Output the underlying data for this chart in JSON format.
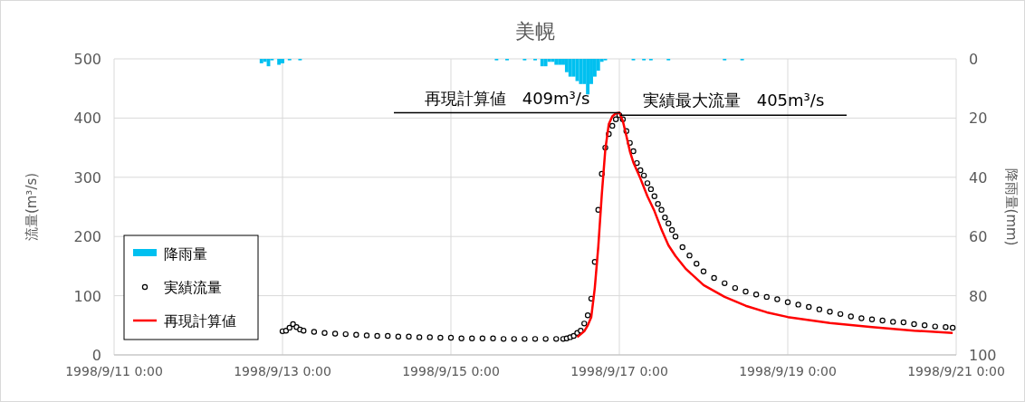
{
  "chart_data": {
    "type": "line",
    "title": "美幌",
    "ylabel": "流量(m³/s)",
    "y2label": "降雨量(mm)",
    "xlim": [
      "1998-09-11T00:00",
      "1998-09-21T00:00"
    ],
    "xticks": [
      {
        "value": "1998-09-11T00:00",
        "label": "1998/9/11 0:00"
      },
      {
        "value": "1998-09-13T00:00",
        "label": "1998/9/13 0:00"
      },
      {
        "value": "1998-09-15T00:00",
        "label": "1998/9/15 0:00"
      },
      {
        "value": "1998-09-17T00:00",
        "label": "1998/9/17 0:00"
      },
      {
        "value": "1998-09-19T00:00",
        "label": "1998/9/19 0:00"
      },
      {
        "value": "1998-09-21T00:00",
        "label": "1998/9/21 0:00"
      }
    ],
    "ylim": [
      0,
      500
    ],
    "yticks": [
      0,
      100,
      200,
      300,
      400,
      500
    ],
    "y2lim": [
      100,
      0
    ],
    "y2ticks": [
      0,
      20,
      40,
      60,
      80,
      100
    ],
    "grid": true,
    "legend": "bottom left",
    "ref_lines": [
      {
        "axis": "y",
        "value": 409,
        "label": "再現計算値　409m³/s",
        "color": "#000000"
      },
      {
        "axis": "y",
        "value": 405,
        "label": "実績最大流量　405m³/s",
        "color": "#000000"
      }
    ],
    "series": [
      {
        "name": "降雨量",
        "type": "bar",
        "axis": "y2",
        "color": "#00c0f0",
        "x": [
          "1998-09-12T18:00",
          "1998-09-12T19:00",
          "1998-09-12T20:00",
          "1998-09-12T21:00",
          "1998-09-12T23:00",
          "1998-09-13T00:00",
          "1998-09-13T02:00",
          "1998-09-13T05:00",
          "1998-09-15T13:00",
          "1998-09-15T16:00",
          "1998-09-15T21:00",
          "1998-09-16T00:00",
          "1998-09-16T02:00",
          "1998-09-16T03:00",
          "1998-09-16T04:00",
          "1998-09-16T05:00",
          "1998-09-16T06:00",
          "1998-09-16T07:00",
          "1998-09-16T08:00",
          "1998-09-16T09:00",
          "1998-09-16T10:00",
          "1998-09-16T11:00",
          "1998-09-16T12:00",
          "1998-09-16T13:00",
          "1998-09-16T14:00",
          "1998-09-16T15:00",
          "1998-09-16T16:00",
          "1998-09-16T17:00",
          "1998-09-16T18:00",
          "1998-09-16T19:00",
          "1998-09-16T20:00",
          "1998-09-17T04:00",
          "1998-09-17T07:00",
          "1998-09-17T09:00",
          "1998-09-17T14:00",
          "1998-09-18T06:00",
          "1998-09-18T11:00"
        ],
        "values": [
          1.5,
          1,
          2.5,
          0.5,
          2,
          1.5,
          0.5,
          0.5,
          0.5,
          0.5,
          0.5,
          0.5,
          2.5,
          2.5,
          1,
          1,
          2,
          2,
          2,
          4.5,
          6,
          6,
          7.5,
          8.5,
          8.5,
          12,
          8.5,
          6,
          4,
          1,
          0.5,
          0.5,
          0.5,
          0.5,
          0.5,
          0.5,
          0.5
        ]
      },
      {
        "name": "実績流量",
        "type": "scatter",
        "marker": "circle",
        "color": "#000000",
        "x": [
          "1998-09-13T00:00",
          "1998-09-13T01:00",
          "1998-09-13T02:00",
          "1998-09-13T03:00",
          "1998-09-13T04:00",
          "1998-09-13T05:00",
          "1998-09-13T06:00",
          "1998-09-13T09:00",
          "1998-09-13T12:00",
          "1998-09-13T15:00",
          "1998-09-13T18:00",
          "1998-09-13T21:00",
          "1998-09-14T00:00",
          "1998-09-14T03:00",
          "1998-09-14T06:00",
          "1998-09-14T09:00",
          "1998-09-14T12:00",
          "1998-09-14T15:00",
          "1998-09-14T18:00",
          "1998-09-14T21:00",
          "1998-09-15T00:00",
          "1998-09-15T03:00",
          "1998-09-15T06:00",
          "1998-09-15T09:00",
          "1998-09-15T12:00",
          "1998-09-15T15:00",
          "1998-09-15T18:00",
          "1998-09-15T21:00",
          "1998-09-16T00:00",
          "1998-09-16T03:00",
          "1998-09-16T06:00",
          "1998-09-16T08:00",
          "1998-09-16T09:00",
          "1998-09-16T10:00",
          "1998-09-16T11:00",
          "1998-09-16T12:00",
          "1998-09-16T13:00",
          "1998-09-16T14:00",
          "1998-09-16T15:00",
          "1998-09-16T16:00",
          "1998-09-16T17:00",
          "1998-09-16T18:00",
          "1998-09-16T19:00",
          "1998-09-16T20:00",
          "1998-09-16T21:00",
          "1998-09-16T22:00",
          "1998-09-16T23:00",
          "1998-09-17T00:00",
          "1998-09-17T01:00",
          "1998-09-17T02:00",
          "1998-09-17T03:00",
          "1998-09-17T04:00",
          "1998-09-17T05:00",
          "1998-09-17T06:00",
          "1998-09-17T07:00",
          "1998-09-17T08:00",
          "1998-09-17T09:00",
          "1998-09-17T10:00",
          "1998-09-17T11:00",
          "1998-09-17T12:00",
          "1998-09-17T13:00",
          "1998-09-17T14:00",
          "1998-09-17T15:00",
          "1998-09-17T16:00",
          "1998-09-17T18:00",
          "1998-09-17T20:00",
          "1998-09-17T22:00",
          "1998-09-18T00:00",
          "1998-09-18T03:00",
          "1998-09-18T06:00",
          "1998-09-18T09:00",
          "1998-09-18T12:00",
          "1998-09-18T15:00",
          "1998-09-18T18:00",
          "1998-09-18T21:00",
          "1998-09-19T00:00",
          "1998-09-19T03:00",
          "1998-09-19T06:00",
          "1998-09-19T09:00",
          "1998-09-19T12:00",
          "1998-09-19T15:00",
          "1998-09-19T18:00",
          "1998-09-19T21:00",
          "1998-09-20T00:00",
          "1998-09-20T03:00",
          "1998-09-20T06:00",
          "1998-09-20T09:00",
          "1998-09-20T12:00",
          "1998-09-20T15:00",
          "1998-09-20T18:00",
          "1998-09-20T21:00",
          "1998-09-20T23:00"
        ],
        "values": [
          40,
          41,
          46,
          52,
          47,
          43,
          41,
          39,
          37,
          36,
          35,
          34,
          33,
          32,
          32,
          31,
          31,
          30,
          30,
          29,
          29,
          28,
          28,
          28,
          28,
          27,
          27,
          27,
          27,
          27,
          27,
          27,
          28,
          30,
          32,
          37,
          41,
          53,
          67,
          95,
          157,
          245,
          306,
          350,
          373,
          387,
          398,
          405,
          398,
          378,
          358,
          344,
          324,
          312,
          303,
          290,
          280,
          268,
          255,
          245,
          232,
          222,
          211,
          200,
          182,
          168,
          154,
          141,
          130,
          121,
          113,
          107,
          102,
          98,
          94,
          89,
          85,
          81,
          77,
          73,
          69,
          65,
          62,
          60,
          58,
          56,
          55,
          52,
          50,
          48,
          47,
          46
        ]
      },
      {
        "name": "再現計算値",
        "marker": "none",
        "line_style": "solid",
        "color": "#ff0000",
        "x": [
          "1998-09-16T12:00",
          "1998-09-16T14:00",
          "1998-09-16T15:00",
          "1998-09-16T16:00",
          "1998-09-16T17:00",
          "1998-09-16T18:00",
          "1998-09-16T19:00",
          "1998-09-16T20:00",
          "1998-09-16T21:00",
          "1998-09-16T22:00",
          "1998-09-16T23:00",
          "1998-09-17T00:00",
          "1998-09-17T01:00",
          "1998-09-17T02:00",
          "1998-09-17T03:00",
          "1998-09-17T04:00",
          "1998-09-17T06:00",
          "1998-09-17T08:00",
          "1998-09-17T10:00",
          "1998-09-17T12:00",
          "1998-09-17T14:00",
          "1998-09-17T16:00",
          "1998-09-17T19:00",
          "1998-09-18T00:00",
          "1998-09-18T06:00",
          "1998-09-18T12:00",
          "1998-09-18T18:00",
          "1998-09-19T00:00",
          "1998-09-19T12:00",
          "1998-09-20T00:00",
          "1998-09-20T12:00",
          "1998-09-20T23:00"
        ],
        "values": [
          30,
          40,
          50,
          64,
          113,
          183,
          271,
          347,
          390,
          403,
          408,
          409,
          395,
          370,
          344,
          325,
          298,
          268,
          243,
          212,
          185,
          167,
          145,
          118,
          98,
          83,
          72,
          64,
          54,
          47,
          41,
          37
        ]
      }
    ]
  }
}
